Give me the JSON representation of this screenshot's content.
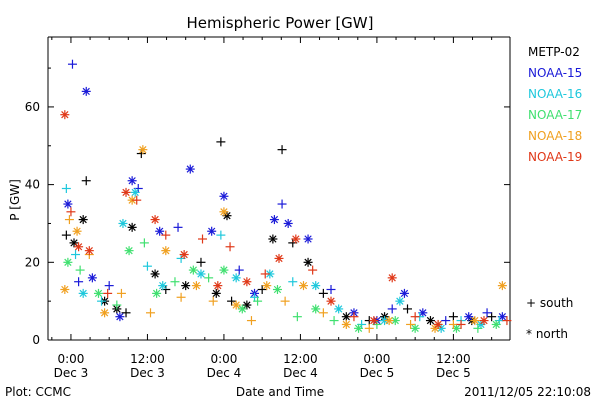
{
  "chart_data": {
    "type": "scatter",
    "title": "Hemispheric Power [GW]",
    "xlabel": "Date and Time",
    "ylabel": "P [GW]",
    "xlim": [
      -0.15,
      2.87
    ],
    "ylim": [
      0,
      78
    ],
    "grid": false,
    "legend_position": "right",
    "x_units": "days since 2011-12-03 00:00",
    "x_ticks": [
      {
        "value": 0.0,
        "time": "0:00",
        "date": "Dec 3"
      },
      {
        "value": 0.5,
        "time": "12:00",
        "date": "Dec 3"
      },
      {
        "value": 1.0,
        "time": "0:00",
        "date": "Dec 4"
      },
      {
        "value": 1.5,
        "time": "12:00",
        "date": "Dec 4"
      },
      {
        "value": 2.0,
        "time": "0:00",
        "date": "Dec 5"
      },
      {
        "value": 2.5,
        "time": "12:00",
        "date": "Dec 5"
      }
    ],
    "y_ticks": [
      0,
      20,
      40,
      60
    ],
    "marker_legend": [
      {
        "symbol": "+",
        "label": "south"
      },
      {
        "symbol": "*",
        "label": "north"
      }
    ],
    "series": [
      {
        "name": "METP-02",
        "color": "#000000",
        "points": [
          {
            "x": -0.03,
            "y": 27,
            "h": "south"
          },
          {
            "x": 0.02,
            "y": 25,
            "h": "north"
          },
          {
            "x": 0.08,
            "y": 31,
            "h": "north"
          },
          {
            "x": 0.1,
            "y": 41,
            "h": "south"
          },
          {
            "x": 0.22,
            "y": 10,
            "h": "north"
          },
          {
            "x": 0.3,
            "y": 8,
            "h": "north"
          },
          {
            "x": 0.36,
            "y": 7,
            "h": "south"
          },
          {
            "x": 0.4,
            "y": 29,
            "h": "north"
          },
          {
            "x": 0.46,
            "y": 48,
            "h": "south"
          },
          {
            "x": 0.55,
            "y": 17,
            "h": "north"
          },
          {
            "x": 0.62,
            "y": 13,
            "h": "south"
          },
          {
            "x": 0.75,
            "y": 14,
            "h": "north"
          },
          {
            "x": 0.85,
            "y": 20,
            "h": "south"
          },
          {
            "x": 0.95,
            "y": 12,
            "h": "north"
          },
          {
            "x": 0.98,
            "y": 51,
            "h": "south"
          },
          {
            "x": 1.02,
            "y": 32,
            "h": "north"
          },
          {
            "x": 1.05,
            "y": 10,
            "h": "south"
          },
          {
            "x": 1.15,
            "y": 9,
            "h": "north"
          },
          {
            "x": 1.25,
            "y": 13,
            "h": "south"
          },
          {
            "x": 1.32,
            "y": 26,
            "h": "north"
          },
          {
            "x": 1.38,
            "y": 49,
            "h": "south"
          },
          {
            "x": 1.45,
            "y": 25,
            "h": "south"
          },
          {
            "x": 1.55,
            "y": 20,
            "h": "north"
          },
          {
            "x": 1.65,
            "y": 12,
            "h": "south"
          },
          {
            "x": 1.8,
            "y": 6,
            "h": "north"
          },
          {
            "x": 1.95,
            "y": 5,
            "h": "south"
          },
          {
            "x": 2.05,
            "y": 6,
            "h": "north"
          },
          {
            "x": 2.2,
            "y": 8,
            "h": "south"
          },
          {
            "x": 2.35,
            "y": 5,
            "h": "north"
          },
          {
            "x": 2.5,
            "y": 6,
            "h": "south"
          },
          {
            "x": 2.62,
            "y": 5,
            "h": "north"
          },
          {
            "x": 2.75,
            "y": 6,
            "h": "south"
          }
        ]
      },
      {
        "name": "NOAA-15",
        "color": "#1a1ad8",
        "points": [
          {
            "x": -0.02,
            "y": 35,
            "h": "north"
          },
          {
            "x": 0.01,
            "y": 71,
            "h": "south"
          },
          {
            "x": 0.05,
            "y": 15,
            "h": "south"
          },
          {
            "x": 0.1,
            "y": 64,
            "h": "north"
          },
          {
            "x": 0.14,
            "y": 16,
            "h": "north"
          },
          {
            "x": 0.25,
            "y": 14,
            "h": "south"
          },
          {
            "x": 0.32,
            "y": 6,
            "h": "north"
          },
          {
            "x": 0.4,
            "y": 41,
            "h": "north"
          },
          {
            "x": 0.44,
            "y": 39,
            "h": "south"
          },
          {
            "x": 0.58,
            "y": 28,
            "h": "north"
          },
          {
            "x": 0.7,
            "y": 29,
            "h": "south"
          },
          {
            "x": 0.78,
            "y": 44,
            "h": "north"
          },
          {
            "x": 0.92,
            "y": 28,
            "h": "north"
          },
          {
            "x": 1.0,
            "y": 37,
            "h": "north"
          },
          {
            "x": 1.1,
            "y": 18,
            "h": "south"
          },
          {
            "x": 1.2,
            "y": 12,
            "h": "north"
          },
          {
            "x": 1.33,
            "y": 31,
            "h": "north"
          },
          {
            "x": 1.38,
            "y": 35,
            "h": "south"
          },
          {
            "x": 1.42,
            "y": 30,
            "h": "north"
          },
          {
            "x": 1.55,
            "y": 26,
            "h": "north"
          },
          {
            "x": 1.7,
            "y": 13,
            "h": "south"
          },
          {
            "x": 1.85,
            "y": 7,
            "h": "north"
          },
          {
            "x": 2.0,
            "y": 5,
            "h": "north"
          },
          {
            "x": 2.1,
            "y": 8,
            "h": "south"
          },
          {
            "x": 2.18,
            "y": 12,
            "h": "north"
          },
          {
            "x": 2.3,
            "y": 7,
            "h": "north"
          },
          {
            "x": 2.45,
            "y": 5,
            "h": "south"
          },
          {
            "x": 2.6,
            "y": 6,
            "h": "north"
          },
          {
            "x": 2.72,
            "y": 7,
            "h": "south"
          },
          {
            "x": 2.82,
            "y": 6,
            "h": "north"
          }
        ]
      },
      {
        "name": "NOAA-16",
        "color": "#1ec8dc",
        "points": [
          {
            "x": -0.03,
            "y": 39,
            "h": "south"
          },
          {
            "x": 0.03,
            "y": 22,
            "h": "south"
          },
          {
            "x": 0.08,
            "y": 12,
            "h": "north"
          },
          {
            "x": 0.2,
            "y": 10,
            "h": "south"
          },
          {
            "x": 0.34,
            "y": 30,
            "h": "north"
          },
          {
            "x": 0.42,
            "y": 38,
            "h": "north"
          },
          {
            "x": 0.5,
            "y": 19,
            "h": "south"
          },
          {
            "x": 0.6,
            "y": 14,
            "h": "north"
          },
          {
            "x": 0.72,
            "y": 21,
            "h": "south"
          },
          {
            "x": 0.85,
            "y": 17,
            "h": "north"
          },
          {
            "x": 0.98,
            "y": 27,
            "h": "south"
          },
          {
            "x": 1.08,
            "y": 16,
            "h": "north"
          },
          {
            "x": 1.2,
            "y": 11,
            "h": "south"
          },
          {
            "x": 1.3,
            "y": 17,
            "h": "north"
          },
          {
            "x": 1.45,
            "y": 15,
            "h": "south"
          },
          {
            "x": 1.6,
            "y": 14,
            "h": "north"
          },
          {
            "x": 1.75,
            "y": 8,
            "h": "north"
          },
          {
            "x": 1.9,
            "y": 4,
            "h": "south"
          },
          {
            "x": 2.05,
            "y": 5,
            "h": "north"
          },
          {
            "x": 2.15,
            "y": 10,
            "h": "north"
          },
          {
            "x": 2.28,
            "y": 6,
            "h": "south"
          },
          {
            "x": 2.42,
            "y": 3,
            "h": "north"
          },
          {
            "x": 2.55,
            "y": 5,
            "h": "south"
          },
          {
            "x": 2.68,
            "y": 4,
            "h": "north"
          },
          {
            "x": 2.8,
            "y": 5,
            "h": "south"
          }
        ]
      },
      {
        "name": "NOAA-17",
        "color": "#40e070",
        "points": [
          {
            "x": -0.02,
            "y": 20,
            "h": "north"
          },
          {
            "x": 0.06,
            "y": 18,
            "h": "south"
          },
          {
            "x": 0.18,
            "y": 12,
            "h": "north"
          },
          {
            "x": 0.3,
            "y": 9,
            "h": "south"
          },
          {
            "x": 0.38,
            "y": 23,
            "h": "north"
          },
          {
            "x": 0.48,
            "y": 25,
            "h": "south"
          },
          {
            "x": 0.56,
            "y": 12,
            "h": "north"
          },
          {
            "x": 0.68,
            "y": 15,
            "h": "south"
          },
          {
            "x": 0.8,
            "y": 18,
            "h": "north"
          },
          {
            "x": 0.9,
            "y": 16,
            "h": "south"
          },
          {
            "x": 1.0,
            "y": 18,
            "h": "north"
          },
          {
            "x": 1.12,
            "y": 8,
            "h": "north"
          },
          {
            "x": 1.22,
            "y": 10,
            "h": "south"
          },
          {
            "x": 1.35,
            "y": 13,
            "h": "north"
          },
          {
            "x": 1.48,
            "y": 6,
            "h": "south"
          },
          {
            "x": 1.6,
            "y": 8,
            "h": "north"
          },
          {
            "x": 1.72,
            "y": 5,
            "h": "south"
          },
          {
            "x": 1.88,
            "y": 3,
            "h": "north"
          },
          {
            "x": 2.0,
            "y": 4,
            "h": "south"
          },
          {
            "x": 2.12,
            "y": 5,
            "h": "north"
          },
          {
            "x": 2.25,
            "y": 3,
            "h": "north"
          },
          {
            "x": 2.4,
            "y": 4,
            "h": "south"
          },
          {
            "x": 2.52,
            "y": 3,
            "h": "north"
          },
          {
            "x": 2.66,
            "y": 3,
            "h": "south"
          },
          {
            "x": 2.78,
            "y": 4,
            "h": "north"
          }
        ]
      },
      {
        "name": "NOAA-18",
        "color": "#f0a020",
        "points": [
          {
            "x": -0.04,
            "y": 13,
            "h": "north"
          },
          {
            "x": -0.01,
            "y": 31,
            "h": "south"
          },
          {
            "x": 0.04,
            "y": 28,
            "h": "north"
          },
          {
            "x": 0.12,
            "y": 22,
            "h": "south"
          },
          {
            "x": 0.22,
            "y": 7,
            "h": "north"
          },
          {
            "x": 0.33,
            "y": 12,
            "h": "south"
          },
          {
            "x": 0.4,
            "y": 36,
            "h": "north"
          },
          {
            "x": 0.47,
            "y": 49,
            "h": "north"
          },
          {
            "x": 0.52,
            "y": 7,
            "h": "south"
          },
          {
            "x": 0.62,
            "y": 23,
            "h": "north"
          },
          {
            "x": 0.72,
            "y": 11,
            "h": "south"
          },
          {
            "x": 0.82,
            "y": 14,
            "h": "north"
          },
          {
            "x": 0.93,
            "y": 10,
            "h": "south"
          },
          {
            "x": 1.0,
            "y": 33,
            "h": "north"
          },
          {
            "x": 1.08,
            "y": 9,
            "h": "north"
          },
          {
            "x": 1.18,
            "y": 5,
            "h": "south"
          },
          {
            "x": 1.28,
            "y": 14,
            "h": "north"
          },
          {
            "x": 1.4,
            "y": 10,
            "h": "south"
          },
          {
            "x": 1.52,
            "y": 14,
            "h": "north"
          },
          {
            "x": 1.65,
            "y": 7,
            "h": "south"
          },
          {
            "x": 1.8,
            "y": 4,
            "h": "north"
          },
          {
            "x": 1.95,
            "y": 3,
            "h": "south"
          },
          {
            "x": 2.08,
            "y": 5,
            "h": "north"
          },
          {
            "x": 2.22,
            "y": 4,
            "h": "south"
          },
          {
            "x": 2.38,
            "y": 3,
            "h": "north"
          },
          {
            "x": 2.5,
            "y": 4,
            "h": "south"
          },
          {
            "x": 2.64,
            "y": 5,
            "h": "north"
          },
          {
            "x": 2.82,
            "y": 14,
            "h": "north"
          }
        ]
      },
      {
        "name": "NOAA-19",
        "color": "#e03818",
        "points": [
          {
            "x": -0.04,
            "y": 58,
            "h": "north"
          },
          {
            "x": 0.0,
            "y": 33,
            "h": "south"
          },
          {
            "x": 0.05,
            "y": 24,
            "h": "north"
          },
          {
            "x": 0.12,
            "y": 23,
            "h": "north"
          },
          {
            "x": 0.24,
            "y": 12,
            "h": "south"
          },
          {
            "x": 0.36,
            "y": 38,
            "h": "north"
          },
          {
            "x": 0.43,
            "y": 36,
            "h": "south"
          },
          {
            "x": 0.55,
            "y": 31,
            "h": "north"
          },
          {
            "x": 0.62,
            "y": 27,
            "h": "south"
          },
          {
            "x": 0.74,
            "y": 22,
            "h": "north"
          },
          {
            "x": 0.86,
            "y": 26,
            "h": "south"
          },
          {
            "x": 0.96,
            "y": 14,
            "h": "north"
          },
          {
            "x": 1.04,
            "y": 24,
            "h": "south"
          },
          {
            "x": 1.15,
            "y": 15,
            "h": "north"
          },
          {
            "x": 1.27,
            "y": 17,
            "h": "south"
          },
          {
            "x": 1.36,
            "y": 21,
            "h": "north"
          },
          {
            "x": 1.47,
            "y": 26,
            "h": "north"
          },
          {
            "x": 1.58,
            "y": 18,
            "h": "south"
          },
          {
            "x": 1.7,
            "y": 10,
            "h": "north"
          },
          {
            "x": 1.85,
            "y": 6,
            "h": "south"
          },
          {
            "x": 1.98,
            "y": 5,
            "h": "north"
          },
          {
            "x": 2.1,
            "y": 16,
            "h": "north"
          },
          {
            "x": 2.25,
            "y": 6,
            "h": "south"
          },
          {
            "x": 2.4,
            "y": 4,
            "h": "north"
          },
          {
            "x": 2.55,
            "y": 4,
            "h": "south"
          },
          {
            "x": 2.7,
            "y": 5,
            "h": "north"
          },
          {
            "x": 2.85,
            "y": 5,
            "h": "south"
          }
        ]
      }
    ]
  },
  "footer": {
    "plot_credit": "Plot: CCMC",
    "timestamp": "2011/12/05 22:10:08"
  }
}
